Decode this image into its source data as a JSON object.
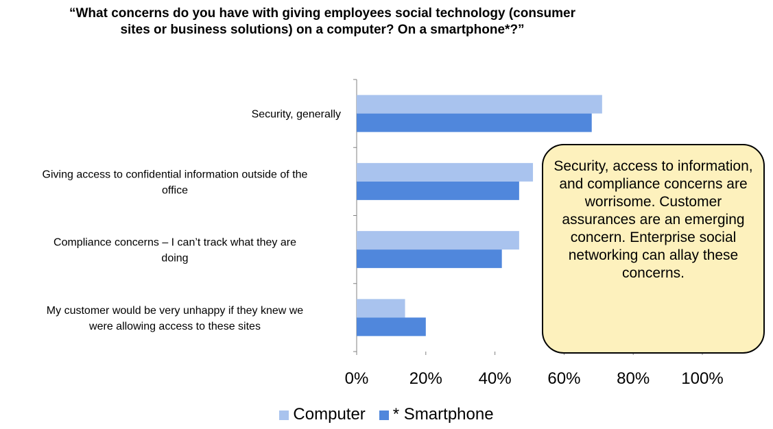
{
  "chart_data": {
    "type": "bar",
    "orientation": "horizontal",
    "title": "“What concerns do you have with giving employees social technology (consumer sites or business solutions) on a computer? On a smartphone*?”",
    "categories": [
      "Security, generally",
      "Giving access to confidential information outside of the office",
      "Compliance concerns – I can’t track what they are doing",
      "My customer would be very unhappy if they knew we were allowing access to these sites"
    ],
    "category_lines": [
      [
        "Security, generally"
      ],
      [
        "Giving access to confidential information outside of the",
        "office"
      ],
      [
        "Compliance concerns – I can’t track what they are",
        "doing"
      ],
      [
        "My customer would be very unhappy if they knew we",
        "were allowing access to these sites"
      ]
    ],
    "series": [
      {
        "name": "Computer",
        "color": "#a9c3ee",
        "values": [
          0.71,
          0.51,
          0.47,
          0.14
        ]
      },
      {
        "name": "* Smartphone",
        "color": "#5087dc",
        "values": [
          0.68,
          0.47,
          0.42,
          0.2
        ]
      }
    ],
    "xlim": [
      0,
      1
    ],
    "x_ticks": [
      {
        "value": 0,
        "label": "0%"
      },
      {
        "value": 0.2,
        "label": "20%"
      },
      {
        "value": 0.4,
        "label": "40%"
      },
      {
        "value": 0.6,
        "label": "60%"
      },
      {
        "value": 0.8,
        "label": "80%"
      },
      {
        "value": 1.0,
        "label": "100%"
      }
    ],
    "grid": false,
    "legend_position": "bottom",
    "annotation": "Security, access to information, and compliance concerns are worrisome. Customer assurances are an emerging concern. Enterprise social networking can allay these concerns."
  }
}
